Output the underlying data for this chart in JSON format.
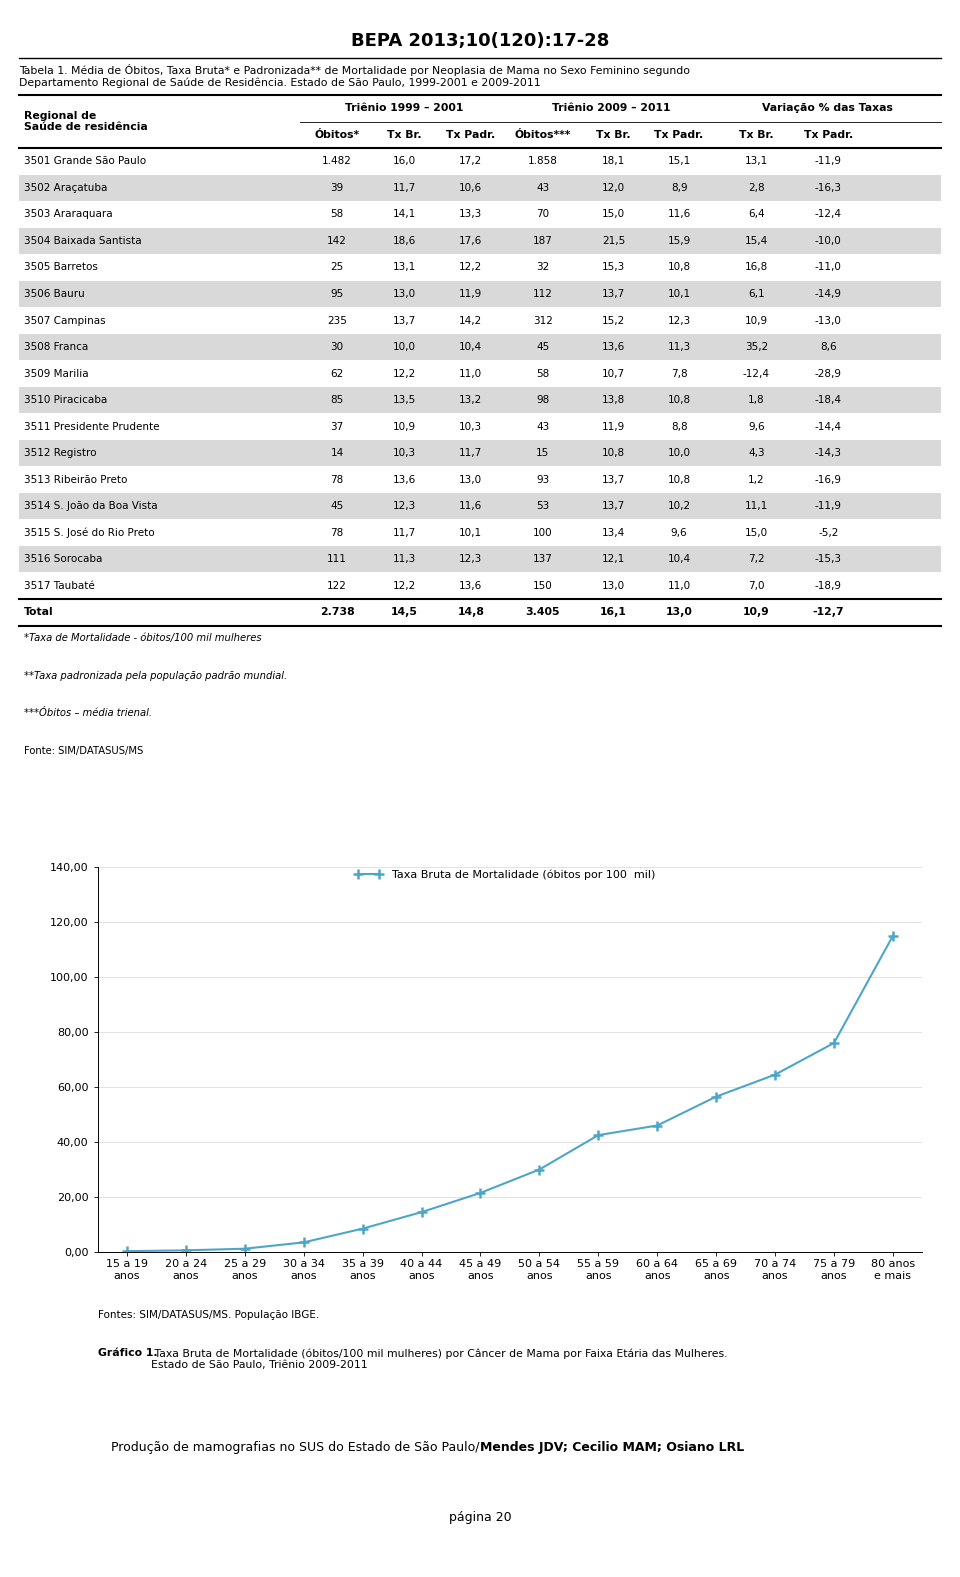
{
  "page_title": "BEPA 2013;10(120):17-28",
  "table_title_line1": "Tabela 1. Média de Óbitos, Taxa Bruta* e Padronizada** de Mortalidade por Neoplasia de Mama no Sexo Feminino segundo",
  "table_title_line2": "Departamento Regional de Saúde de Residência. Estado de São Paulo, 1999-2001 e 2009-2011",
  "col_headers_row2": [
    "Óbitos*",
    "Tx Br.",
    "Tx Padr.",
    "Óbitos***",
    "Tx Br.",
    "Tx Padr.",
    "Tx Br.",
    "Tx Padr."
  ],
  "rows": [
    [
      "3501 Grande São Paulo",
      "1.482",
      "16,0",
      "17,2",
      "1.858",
      "18,1",
      "15,1",
      "13,1",
      "-11,9"
    ],
    [
      "3502 Araçatuba",
      "39",
      "11,7",
      "10,6",
      "43",
      "12,0",
      "8,9",
      "2,8",
      "-16,3"
    ],
    [
      "3503 Araraquara",
      "58",
      "14,1",
      "13,3",
      "70",
      "15,0",
      "11,6",
      "6,4",
      "-12,4"
    ],
    [
      "3504 Baixada Santista",
      "142",
      "18,6",
      "17,6",
      "187",
      "21,5",
      "15,9",
      "15,4",
      "-10,0"
    ],
    [
      "3505 Barretos",
      "25",
      "13,1",
      "12,2",
      "32",
      "15,3",
      "10,8",
      "16,8",
      "-11,0"
    ],
    [
      "3506 Bauru",
      "95",
      "13,0",
      "11,9",
      "112",
      "13,7",
      "10,1",
      "6,1",
      "-14,9"
    ],
    [
      "3507 Campinas",
      "235",
      "13,7",
      "14,2",
      "312",
      "15,2",
      "12,3",
      "10,9",
      "-13,0"
    ],
    [
      "3508 Franca",
      "30",
      "10,0",
      "10,4",
      "45",
      "13,6",
      "11,3",
      "35,2",
      "8,6"
    ],
    [
      "3509 Marilia",
      "62",
      "12,2",
      "11,0",
      "58",
      "10,7",
      "7,8",
      "-12,4",
      "-28,9"
    ],
    [
      "3510 Piracicaba",
      "85",
      "13,5",
      "13,2",
      "98",
      "13,8",
      "10,8",
      "1,8",
      "-18,4"
    ],
    [
      "3511 Presidente Prudente",
      "37",
      "10,9",
      "10,3",
      "43",
      "11,9",
      "8,8",
      "9,6",
      "-14,4"
    ],
    [
      "3512 Registro",
      "14",
      "10,3",
      "11,7",
      "15",
      "10,8",
      "10,0",
      "4,3",
      "-14,3"
    ],
    [
      "3513 Ribeirão Preto",
      "78",
      "13,6",
      "13,0",
      "93",
      "13,7",
      "10,8",
      "1,2",
      "-16,9"
    ],
    [
      "3514 S. João da Boa Vista",
      "45",
      "12,3",
      "11,6",
      "53",
      "13,7",
      "10,2",
      "11,1",
      "-11,9"
    ],
    [
      "3515 S. José do Rio Preto",
      "78",
      "11,7",
      "10,1",
      "100",
      "13,4",
      "9,6",
      "15,0",
      "-5,2"
    ],
    [
      "3516 Sorocaba",
      "111",
      "11,3",
      "12,3",
      "137",
      "12,1",
      "10,4",
      "7,2",
      "-15,3"
    ],
    [
      "3517 Taubaté",
      "122",
      "12,2",
      "13,6",
      "150",
      "13,0",
      "11,0",
      "7,0",
      "-18,9"
    ]
  ],
  "total_row": [
    "Total",
    "2.738",
    "14,5",
    "14,8",
    "3.405",
    "16,1",
    "13,0",
    "10,9",
    "-12,7"
  ],
  "footnotes": [
    "*Taxa de Mortalidade - óbitos/100 mil mulheres",
    "**Taxa padronizada pela população padrão mundial.",
    "***Óbitos – média trienal.",
    "Fonte: SIM/DATASUS/MS"
  ],
  "chart_xticklabels": [
    "15 a 19\nanos",
    "20 a 24\nanos",
    "25 a 29\nanos",
    "30 a 34\nanos",
    "35 a 39\nanos",
    "40 a 44\nanos",
    "45 a 49\nanos",
    "50 a 54\nanos",
    "55 a 59\nanos",
    "60 a 64\nanos",
    "65 a 69\nanos",
    "70 a 74\nanos",
    "75 a 79\nanos",
    "80 anos\ne mais"
  ],
  "chart_yvalues": [
    0.3,
    0.6,
    1.2,
    3.5,
    8.5,
    14.5,
    21.5,
    30.0,
    42.5,
    46.0,
    56.5,
    64.5,
    76.0,
    115.0
  ],
  "chart_ylabel_ticks": [
    "0,00",
    "20,00",
    "40,00",
    "60,00",
    "80,00",
    "100,00",
    "120,00",
    "140,00"
  ],
  "chart_ytick_vals": [
    0,
    20,
    40,
    60,
    80,
    100,
    120,
    140
  ],
  "chart_legend": "Taxa Bruta de Mortalidade (óbitos por 100  mil)",
  "chart_line_color": "#4da6c8",
  "chart_sources": "Fontes: SIM/DATASUS/MS. População IBGE.",
  "chart_caption_bold": "Gráfico 1.",
  "chart_caption_rest": " Taxa Bruta de Mortalidade (óbitos/100 mil mulheres) por Câncer de Mama por Faixa Etária das Mulheres.\nEstado de São Paulo, Triênio 2009-2011",
  "footer_normal": "Produção de mamografias no SUS do Estado de São Paulo/",
  "footer_bold": "Mendes JDV; Cecilio MAM; Osiano LRL",
  "page_num": "página 20",
  "bg_color": "#ffffff",
  "table_stripe_color": "#d9d9d9"
}
